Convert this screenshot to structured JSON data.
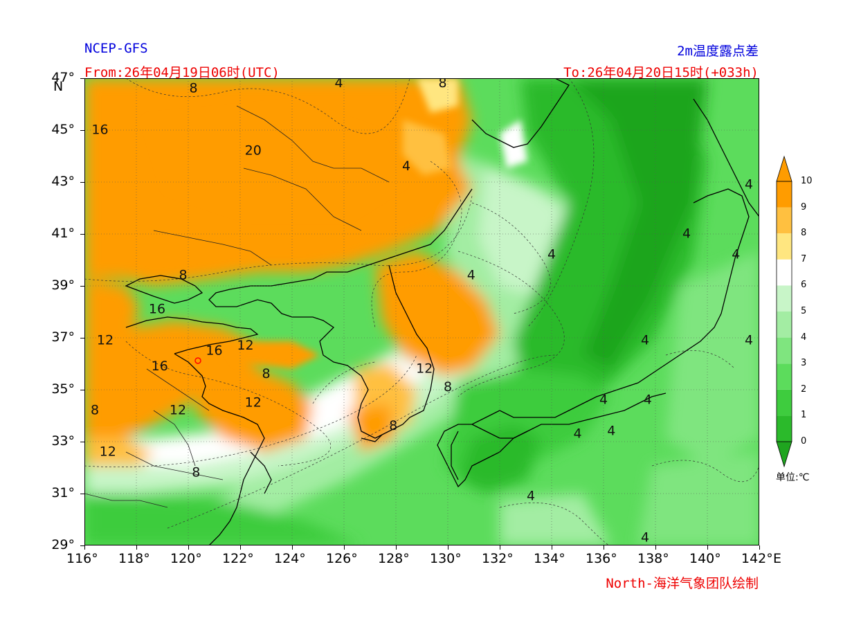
{
  "header": {
    "model": "NCEP-GFS",
    "product": "2m温度露点差",
    "from": "From:26年04月19日06时(UTC)",
    "to": "To:26年04月20日15时(+033h)",
    "credit": "North-海洋气象团队绘制"
  },
  "axes": {
    "lat_labels": [
      "47°",
      "45°",
      "43°",
      "41°",
      "39°",
      "37°",
      "35°",
      "33°",
      "31°",
      "29°"
    ],
    "lat_values": [
      47,
      45,
      43,
      41,
      39,
      37,
      35,
      33,
      31,
      29
    ],
    "lat_unit": "N",
    "lon_labels": [
      "116°",
      "118°",
      "120°",
      "122°",
      "124°",
      "126°",
      "128°",
      "130°",
      "132°",
      "134°",
      "136°",
      "138°",
      "140°",
      "142°"
    ],
    "lon_values": [
      116,
      118,
      120,
      122,
      124,
      126,
      128,
      130,
      132,
      134,
      136,
      138,
      140,
      142
    ],
    "lon_unit": "E",
    "lon_range": [
      116,
      142
    ],
    "lat_range": [
      29,
      47
    ]
  },
  "colorbar": {
    "unit_label": "单位:℃",
    "levels": [
      "0",
      "1",
      "2",
      "3",
      "4",
      "5",
      "6",
      "7",
      "8",
      "9",
      "10"
    ],
    "colors": [
      "#1fa51f",
      "#2bba2b",
      "#3ecc3e",
      "#5cdc5c",
      "#7fe57f",
      "#a3eda3",
      "#c8f5c8",
      "#ffffff",
      "#ffe680",
      "#ffc040",
      "#ff9c00"
    ]
  },
  "contour_labels": [
    {
      "text": "8",
      "lon": 120.2,
      "lat": 46.6
    },
    {
      "text": "4",
      "lon": 125.8,
      "lat": 46.8
    },
    {
      "text": "8",
      "lon": 129.8,
      "lat": 46.8
    },
    {
      "text": "16",
      "lon": 116.6,
      "lat": 45.0
    },
    {
      "text": "20",
      "lon": 122.5,
      "lat": 44.2
    },
    {
      "text": "4",
      "lon": 128.4,
      "lat": 43.6
    },
    {
      "text": "4",
      "lon": 141.6,
      "lat": 42.9
    },
    {
      "text": "4",
      "lon": 139.2,
      "lat": 41.0
    },
    {
      "text": "4",
      "lon": 134.0,
      "lat": 40.2
    },
    {
      "text": "4",
      "lon": 141.1,
      "lat": 40.2
    },
    {
      "text": "8",
      "lon": 119.8,
      "lat": 39.4
    },
    {
      "text": "4",
      "lon": 130.9,
      "lat": 39.4
    },
    {
      "text": "16",
      "lon": 118.8,
      "lat": 38.1
    },
    {
      "text": "12",
      "lon": 116.8,
      "lat": 36.9
    },
    {
      "text": "16",
      "lon": 121.0,
      "lat": 36.5
    },
    {
      "text": "12",
      "lon": 122.2,
      "lat": 36.7
    },
    {
      "text": "4",
      "lon": 137.6,
      "lat": 36.9
    },
    {
      "text": "4",
      "lon": 141.6,
      "lat": 36.9
    },
    {
      "text": "16",
      "lon": 118.9,
      "lat": 35.9
    },
    {
      "text": "8",
      "lon": 123.0,
      "lat": 35.6
    },
    {
      "text": "12",
      "lon": 129.1,
      "lat": 35.8
    },
    {
      "text": "8",
      "lon": 130.0,
      "lat": 35.1
    },
    {
      "text": "12",
      "lon": 122.5,
      "lat": 34.5
    },
    {
      "text": "4",
      "lon": 136.0,
      "lat": 34.6
    },
    {
      "text": "4",
      "lon": 137.7,
      "lat": 34.6
    },
    {
      "text": "12",
      "lon": 119.6,
      "lat": 34.2
    },
    {
      "text": "8",
      "lon": 116.4,
      "lat": 34.2
    },
    {
      "text": "8",
      "lon": 127.9,
      "lat": 33.6
    },
    {
      "text": "4",
      "lon": 135.0,
      "lat": 33.3
    },
    {
      "text": "4",
      "lon": 136.3,
      "lat": 33.4
    },
    {
      "text": "12",
      "lon": 116.9,
      "lat": 32.6
    },
    {
      "text": "8",
      "lon": 120.3,
      "lat": 31.8
    },
    {
      "text": "4",
      "lon": 133.2,
      "lat": 30.9
    },
    {
      "text": "4",
      "lon": 137.6,
      "lat": 29.3
    }
  ]
}
